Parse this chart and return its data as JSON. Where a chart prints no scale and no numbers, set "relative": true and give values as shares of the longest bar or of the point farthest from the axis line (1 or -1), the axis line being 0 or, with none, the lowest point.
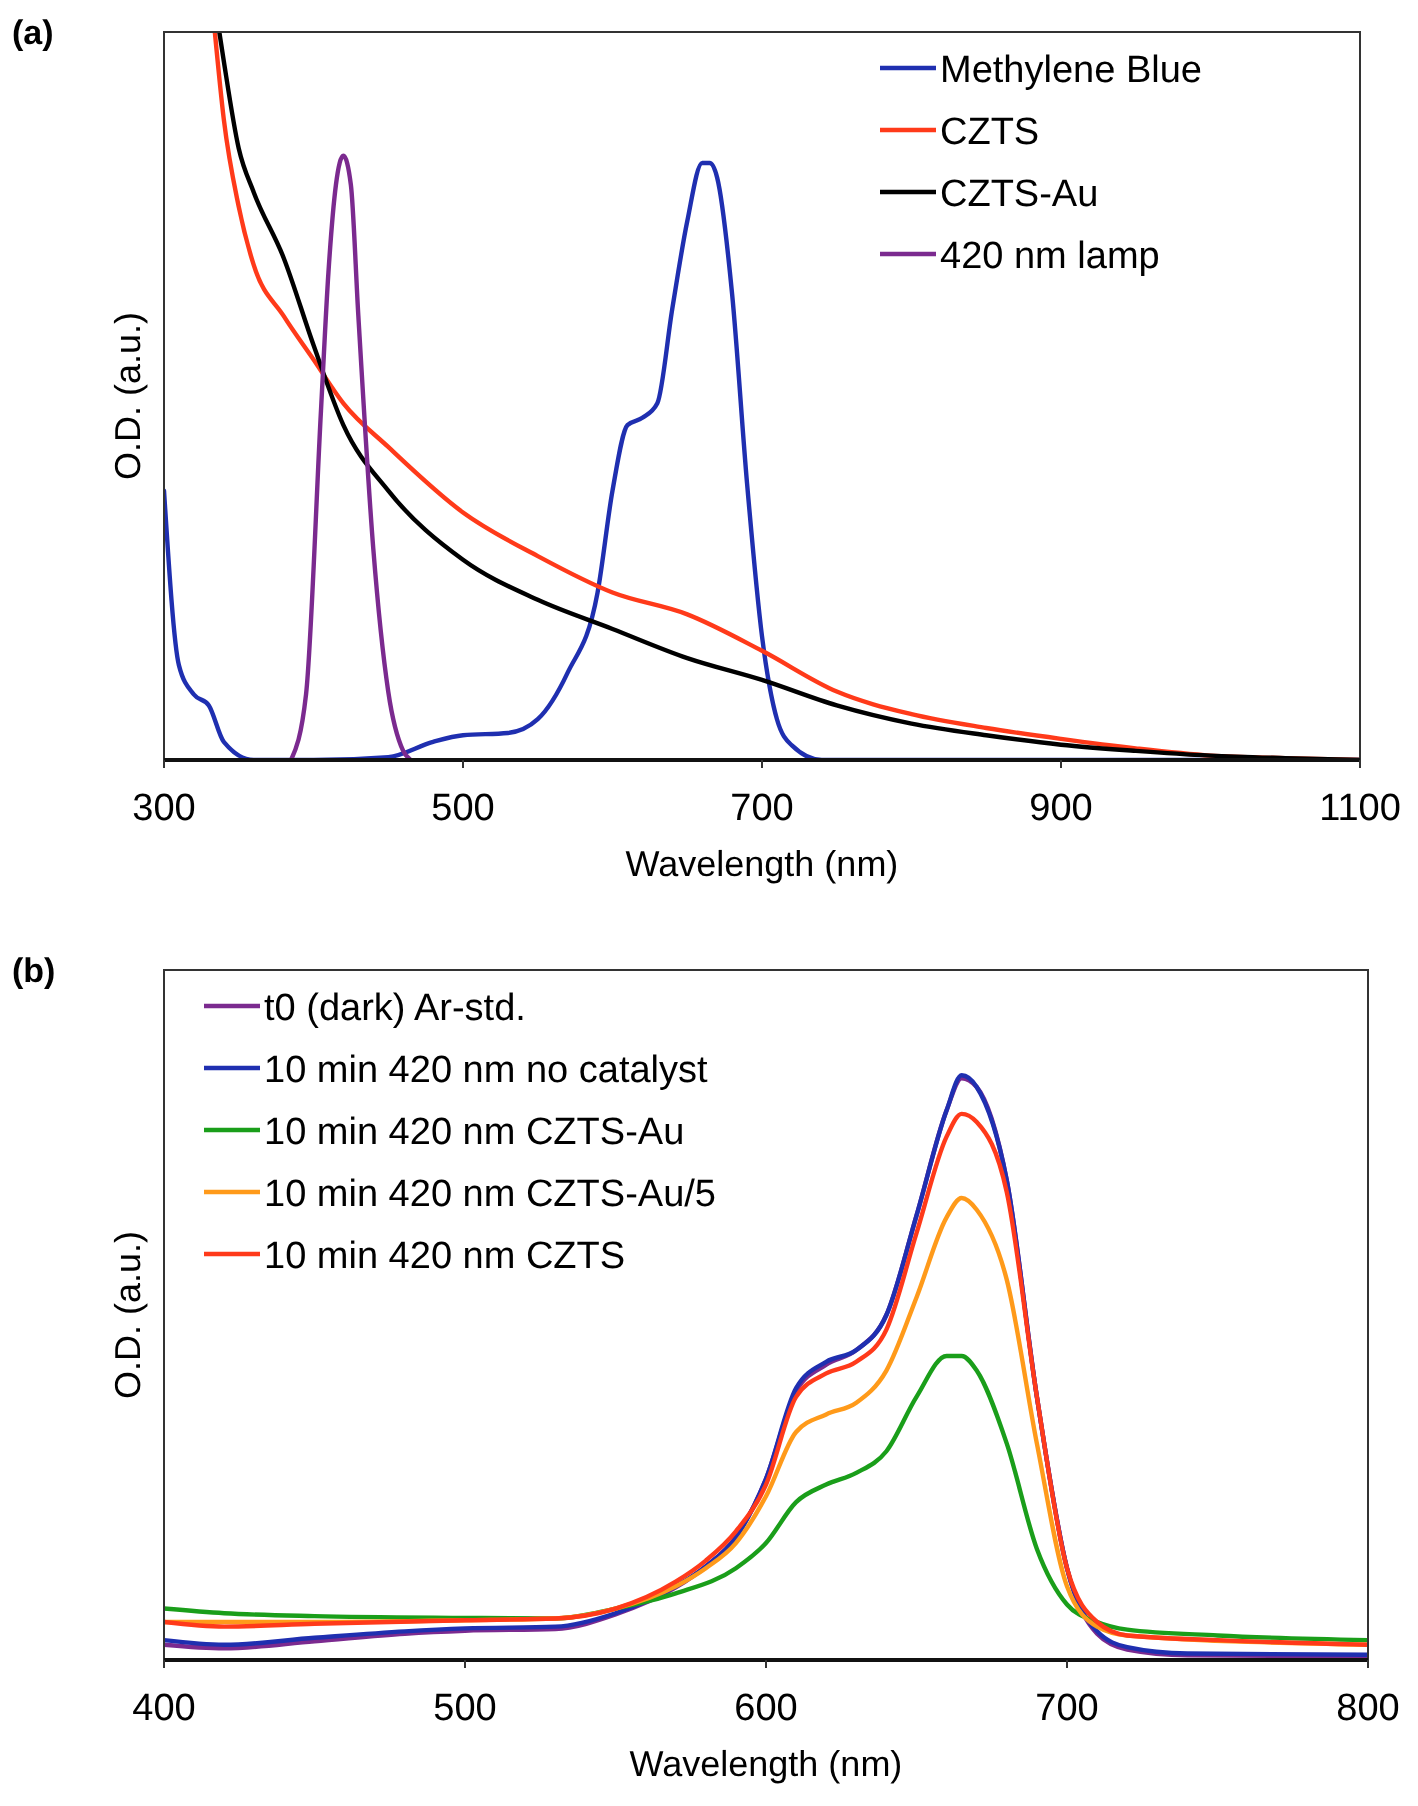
{
  "chart_data": [
    {
      "type": "line",
      "relative": true,
      "annotations": [
        "(a)"
      ],
      "xlabel": "Wavelength (nm)",
      "ylabel": "O.D. (a.u.)",
      "xlim": [
        300,
        1100
      ],
      "xticks": [
        300,
        500,
        700,
        900,
        1100
      ],
      "legend": "top right",
      "grid": false,
      "tick_labels": "x",
      "series": [
        {
          "name": "Methylene Blue",
          "color": "#1f2fb0",
          "x": [
            300,
            310,
            320,
            330,
            340,
            360,
            400,
            450,
            480,
            500,
            530,
            550,
            570,
            590,
            600,
            610,
            620,
            630,
            640,
            650,
            660,
            665,
            670,
            680,
            690,
            700,
            710,
            720,
            740,
            1100
          ],
          "values": [
            0.37,
            0.13,
            0.09,
            0.075,
            0.025,
            0,
            0,
            0.004,
            0.025,
            0.034,
            0.037,
            0.056,
            0.12,
            0.23,
            0.37,
            0.46,
            0.47,
            0.49,
            0.62,
            0.74,
            0.82,
            0.82,
            0.8,
            0.64,
            0.38,
            0.17,
            0.056,
            0.02,
            0,
            0
          ]
        },
        {
          "name": "CZTS",
          "color": "#ff3a1a",
          "x": [
            334,
            340,
            350,
            360,
            380,
            400,
            420,
            450,
            500,
            550,
            600,
            650,
            700,
            750,
            800,
            850,
            900,
            950,
            1000,
            1050,
            1100
          ],
          "values": [
            1.0,
            0.88,
            0.76,
            0.68,
            0.61,
            0.55,
            0.49,
            0.43,
            0.34,
            0.28,
            0.23,
            0.2,
            0.15,
            0.094,
            0.063,
            0.044,
            0.029,
            0.016,
            0.006,
            0.0025,
            0
          ]
        },
        {
          "name": "CZTS-Au",
          "color": "#000000",
          "x": [
            337,
            340,
            350,
            360,
            380,
            400,
            420,
            450,
            500,
            550,
            600,
            650,
            700,
            750,
            800,
            850,
            900,
            950,
            1000,
            1050,
            1100
          ],
          "values": [
            1.0,
            0.96,
            0.84,
            0.78,
            0.69,
            0.57,
            0.46,
            0.37,
            0.275,
            0.22,
            0.18,
            0.14,
            0.11,
            0.075,
            0.05,
            0.034,
            0.021,
            0.0125,
            0.006,
            0.0025,
            0
          ]
        },
        {
          "name": "420 nm lamp",
          "color": "#7b2a8f",
          "x": [
            385,
            395,
            405,
            410,
            415,
            420,
            425,
            430,
            440,
            450,
            460,
            465
          ],
          "values": [
            0,
            0.09,
            0.48,
            0.67,
            0.79,
            0.83,
            0.79,
            0.61,
            0.29,
            0.094,
            0.0125,
            0
          ]
        }
      ]
    },
    {
      "type": "line",
      "relative": true,
      "annotations": [
        "(b)"
      ],
      "xlabel": "Wavelength (nm)",
      "ylabel": "O.D. (a.u.)",
      "xlim": [
        400,
        800
      ],
      "xticks": [
        400,
        500,
        600,
        700,
        800
      ],
      "legend": "top left",
      "grid": false,
      "tick_labels": "x",
      "series": [
        {
          "name": "t0 (dark) Ar-std.",
          "color": "#7b2a8f",
          "x": [
            400,
            420,
            450,
            480,
            500,
            530,
            550,
            570,
            580,
            590,
            600,
            610,
            620,
            630,
            640,
            650,
            660,
            665,
            670,
            680,
            690,
            700,
            710,
            720,
            740,
            800
          ],
          "values": [
            0.026,
            0.02,
            0.032,
            0.045,
            0.05,
            0.053,
            0.078,
            0.124,
            0.16,
            0.21,
            0.31,
            0.46,
            0.505,
            0.53,
            0.59,
            0.76,
            0.94,
            0.995,
            0.98,
            0.82,
            0.45,
            0.157,
            0.045,
            0.018,
            0.008,
            0.006
          ]
        },
        {
          "name": "10 min 420 nm no catalyst",
          "color": "#1f2fb0",
          "x": [
            400,
            420,
            450,
            480,
            500,
            530,
            550,
            570,
            580,
            590,
            600,
            610,
            620,
            630,
            640,
            650,
            660,
            665,
            670,
            680,
            690,
            700,
            710,
            720,
            740,
            800
          ],
          "values": [
            0.034,
            0.026,
            0.038,
            0.049,
            0.054,
            0.057,
            0.08,
            0.126,
            0.16,
            0.21,
            0.31,
            0.465,
            0.51,
            0.53,
            0.59,
            0.76,
            0.94,
            1.0,
            0.98,
            0.82,
            0.45,
            0.157,
            0.049,
            0.022,
            0.011,
            0.009
          ]
        },
        {
          "name": "10 min 420 nm CZTS-Au",
          "color": "#1a9e1a",
          "x": [
            400,
            420,
            450,
            500,
            530,
            550,
            570,
            590,
            600,
            610,
            620,
            630,
            640,
            650,
            660,
            665,
            670,
            680,
            690,
            700,
            710,
            720,
            750,
            800
          ],
          "values": [
            0.088,
            0.08,
            0.075,
            0.072,
            0.071,
            0.088,
            0.114,
            0.157,
            0.2,
            0.27,
            0.3,
            0.32,
            0.357,
            0.45,
            0.52,
            0.52,
            0.495,
            0.37,
            0.19,
            0.095,
            0.065,
            0.052,
            0.042,
            0.034
          ]
        },
        {
          "name": "10 min 420 nm CZTS-Au/5",
          "color": "#ff9a1a",
          "x": [
            400,
            450,
            500,
            530,
            550,
            570,
            580,
            590,
            600,
            610,
            620,
            630,
            640,
            650,
            660,
            665,
            670,
            680,
            690,
            700,
            710,
            720,
            800
          ],
          "values": [
            0.065,
            0.065,
            0.068,
            0.071,
            0.088,
            0.126,
            0.157,
            0.2,
            0.28,
            0.39,
            0.42,
            0.44,
            0.495,
            0.62,
            0.757,
            0.79,
            0.77,
            0.65,
            0.37,
            0.126,
            0.057,
            0.042,
            0.026
          ]
        },
        {
          "name": "10 min 420 nm CZTS",
          "color": "#ff3a1a",
          "x": [
            400,
            420,
            450,
            500,
            530,
            550,
            570,
            580,
            590,
            600,
            610,
            620,
            630,
            640,
            650,
            660,
            665,
            670,
            680,
            690,
            700,
            710,
            720,
            750,
            800
          ],
          "values": [
            0.065,
            0.057,
            0.062,
            0.068,
            0.071,
            0.088,
            0.134,
            0.17,
            0.22,
            0.3,
            0.45,
            0.49,
            0.51,
            0.565,
            0.73,
            0.895,
            0.934,
            0.92,
            0.8,
            0.45,
            0.157,
            0.065,
            0.042,
            0.034,
            0.026
          ]
        }
      ]
    }
  ]
}
